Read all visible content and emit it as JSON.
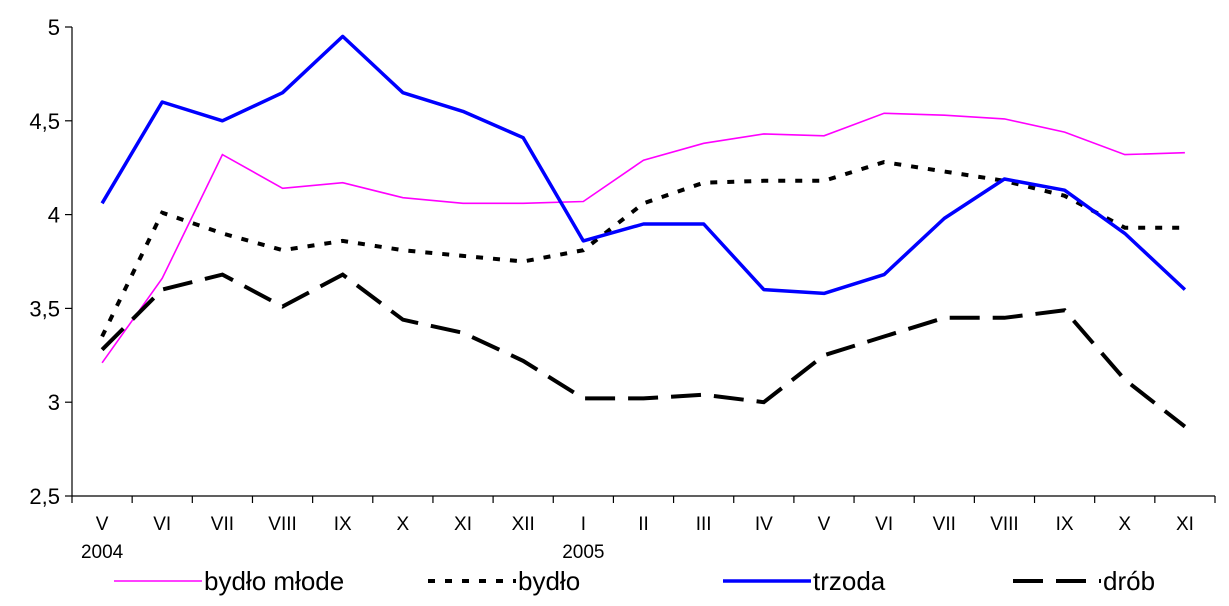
{
  "chart_data": {
    "type": "line",
    "title": "",
    "xlabel": "",
    "ylabel": "",
    "ylim": [
      2.5,
      5
    ],
    "yticks": [
      "2,5",
      "3",
      "3,5",
      "4",
      "4,5",
      "5"
    ],
    "categories": [
      "V",
      "VI",
      "VII",
      "VIII",
      "IX",
      "X",
      "XI",
      "XII",
      "I",
      "II",
      "III",
      "IV",
      "V",
      "VI",
      "VII",
      "VIII",
      "IX",
      "X",
      "XI"
    ],
    "year_labels": [
      {
        "index": 0,
        "label": "2004"
      },
      {
        "index": 8,
        "label": "2005"
      }
    ],
    "grid": false,
    "legend_position": "bottom",
    "series": [
      {
        "name": "bydło młode",
        "color": "#ff00ff",
        "style": "solid-thin",
        "values": [
          3.21,
          3.66,
          4.32,
          4.14,
          4.17,
          4.09,
          4.06,
          4.06,
          4.07,
          4.29,
          4.38,
          4.43,
          4.42,
          4.54,
          4.53,
          4.51,
          4.44,
          4.32,
          4.33
        ]
      },
      {
        "name": "bydło",
        "color": "#000000",
        "style": "dotted",
        "values": [
          3.35,
          4.01,
          3.9,
          3.81,
          3.86,
          3.81,
          3.78,
          3.75,
          3.81,
          4.06,
          4.17,
          4.18,
          4.18,
          4.28,
          4.23,
          4.18,
          4.1,
          3.93,
          3.93
        ]
      },
      {
        "name": "trzoda",
        "color": "#0000ff",
        "style": "solid-thick",
        "values": [
          4.06,
          4.6,
          4.5,
          4.65,
          4.95,
          4.65,
          4.55,
          4.41,
          3.86,
          3.95,
          3.95,
          3.6,
          3.58,
          3.68,
          3.98,
          4.19,
          4.13,
          3.9,
          3.6
        ]
      },
      {
        "name": "drób",
        "color": "#000000",
        "style": "dashed",
        "values": [
          3.28,
          3.6,
          3.68,
          3.51,
          3.68,
          3.44,
          3.37,
          3.22,
          3.02,
          3.02,
          3.04,
          3.0,
          3.25,
          3.35,
          3.45,
          3.45,
          3.49,
          3.12,
          2.87
        ]
      }
    ]
  }
}
